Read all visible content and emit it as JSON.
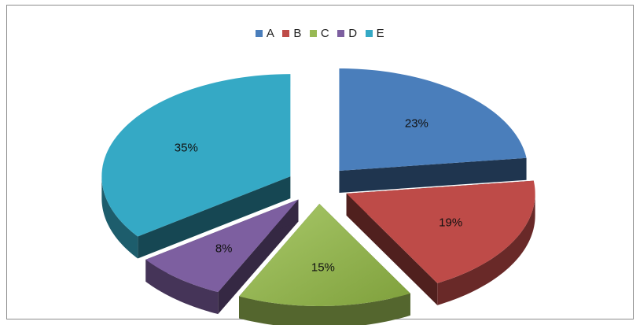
{
  "chart_data": {
    "type": "pie",
    "variant": "3d-exploded",
    "categories": [
      "A",
      "B",
      "C",
      "D",
      "E"
    ],
    "values": [
      23,
      19,
      15,
      8,
      35
    ],
    "labels": [
      "23%",
      "19%",
      "15%",
      "8%",
      "35%"
    ],
    "colors": [
      "#4a7ebb",
      "#be4b48",
      "#98b954",
      "#7d5fa0",
      "#35a9c5"
    ],
    "legend_position": "top",
    "title": ""
  }
}
